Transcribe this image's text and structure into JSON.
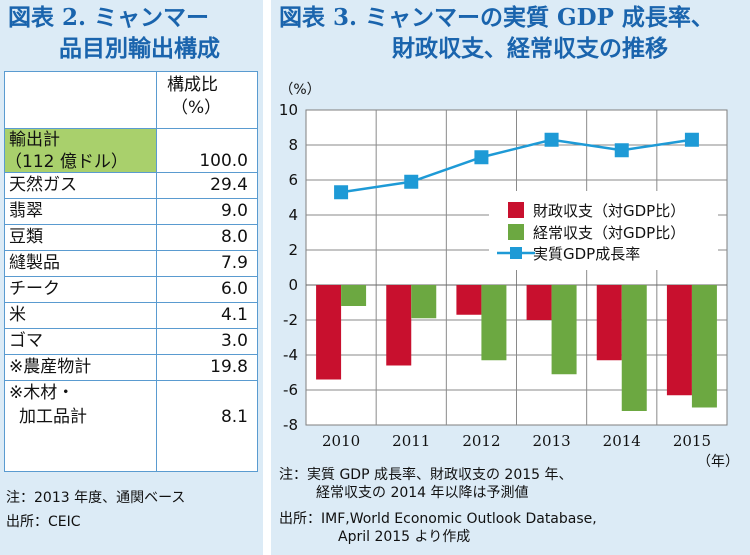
{
  "left_panel": {
    "title_line1": "図表 2. ミャンマー",
    "title_line2": "品目別輸出構成",
    "table": {
      "header_line1": "構成比",
      "header_line2": "（%）",
      "total_label_line1": "輸出計",
      "total_label_line2": "（112 億ドル）",
      "total_value": "100.0",
      "rows": [
        {
          "label": "天然ガス",
          "value": "29.4"
        },
        {
          "label": "翡翠",
          "value": "9.0"
        },
        {
          "label": "豆類",
          "value": "8.0"
        },
        {
          "label": "縫製品",
          "value": "7.9"
        },
        {
          "label": "チーク",
          "value": "6.0"
        },
        {
          "label": "米",
          "value": "4.1"
        },
        {
          "label": "ゴマ",
          "value": "3.0"
        },
        {
          "label": "※農産物計",
          "value": "19.8"
        }
      ],
      "last_label_line1": "※木材・",
      "last_label_line2": "加工品計",
      "last_value": "8.1"
    },
    "note": "注：2013 年度、通関ベース",
    "source": "出所：CEIC",
    "colors": {
      "title": "#1a64ad",
      "total_highlight": "#a9d06c",
      "border": "#5a9bd0"
    }
  },
  "right_panel": {
    "title_line1": "図表 3. ミャンマーの実質 GDP 成長率、",
    "title_line2": "財政収支、経常収支の推移",
    "note_line1": "注：実質 GDP 成長率、財政収支の 2015 年、",
    "note_line2": "経常収支の 2014 年以降は予測値",
    "source_line1": "出所：IMF,World Economic Outlook Database,",
    "source_line2": "April 2015 より作成"
  },
  "chart_data": {
    "type": "bar",
    "categories": [
      "2010",
      "2011",
      "2012",
      "2013",
      "2014",
      "2015"
    ],
    "series": [
      {
        "name": "財政収支（対GDP比）",
        "kind": "bar",
        "color": "#c8102e",
        "values": [
          -5.4,
          -4.6,
          -1.7,
          -2.0,
          -4.3,
          -6.3
        ]
      },
      {
        "name": "経常収支（対GDP比）",
        "kind": "bar",
        "color": "#6ca841",
        "values": [
          -1.2,
          -1.9,
          -4.3,
          -5.1,
          -7.2,
          -7.0
        ]
      },
      {
        "name": "実質GDP成長率",
        "kind": "line",
        "color": "#1e9ad6",
        "values": [
          5.3,
          5.9,
          7.3,
          8.3,
          7.7,
          8.3
        ]
      }
    ],
    "ylim": [
      -8,
      10
    ],
    "yticks": [
      "10",
      "8",
      "6",
      "4",
      "2",
      "0",
      "-2",
      "-4",
      "-6",
      "-8"
    ],
    "yunit": "（%）",
    "xunit": "（年）",
    "grid": true,
    "legend": "center-right"
  }
}
